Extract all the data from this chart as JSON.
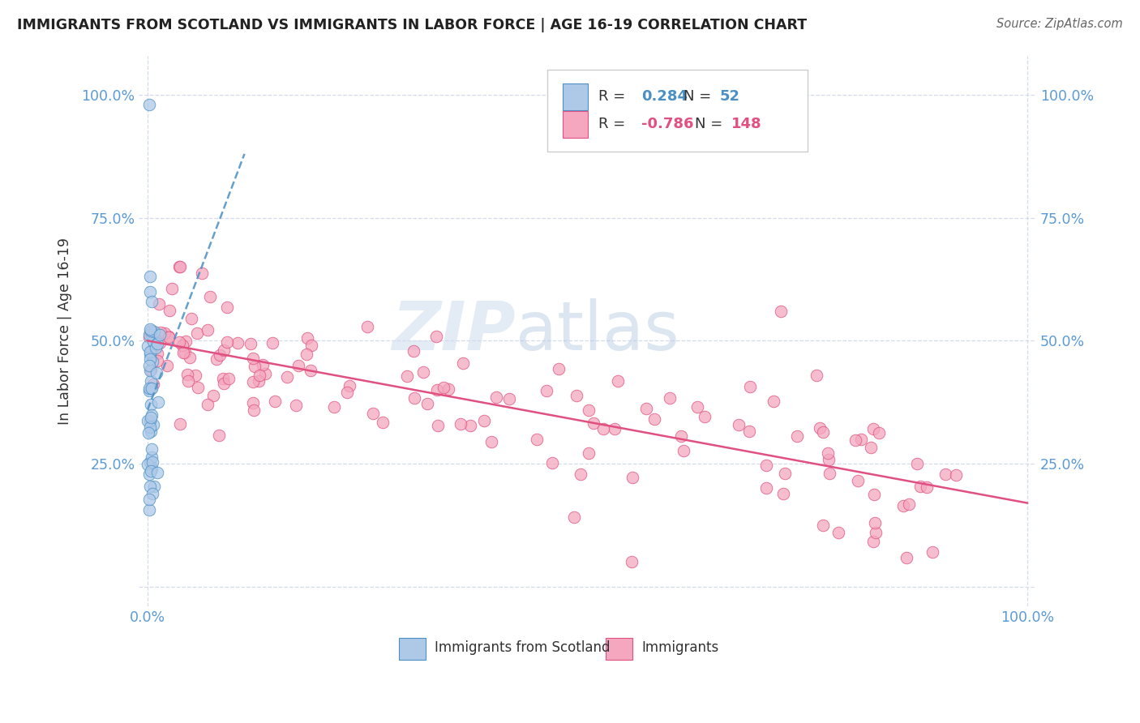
{
  "title": "IMMIGRANTS FROM SCOTLAND VS IMMIGRANTS IN LABOR FORCE | AGE 16-19 CORRELATION CHART",
  "source": "Source: ZipAtlas.com",
  "ylabel": "In Labor Force | Age 16-19",
  "blue_R": 0.284,
  "blue_N": 52,
  "pink_R": -0.786,
  "pink_N": 148,
  "blue_color": "#aec9e8",
  "blue_edge_color": "#4a90c4",
  "blue_line_color": "#4a90c4",
  "pink_color": "#f4a7bf",
  "pink_edge_color": "#e05080",
  "pink_line_color": "#e05080",
  "legend_blue_label": "Immigrants from Scotland",
  "legend_pink_label": "Immigrants",
  "watermark_zip": "ZIP",
  "watermark_atlas": "atlas",
  "background_color": "#ffffff",
  "grid_color": "#d0d8e8",
  "title_color": "#222222",
  "source_color": "#666666",
  "ylabel_color": "#333333",
  "tick_color": "#5b9bd5",
  "xlim": [
    -0.01,
    1.01
  ],
  "ylim": [
    -0.04,
    1.08
  ],
  "ytick_positions": [
    0.0,
    0.25,
    0.5,
    0.75,
    1.0
  ],
  "ytick_labels_left": [
    "",
    "25.0%",
    "50.0%",
    "75.0%",
    "100.0%"
  ],
  "ytick_labels_right": [
    "",
    "25.0%",
    "50.0%",
    "75.0%",
    "100.0%"
  ],
  "xtick_positions": [
    0.0,
    1.0
  ],
  "xtick_labels": [
    "0.0%",
    "100.0%"
  ],
  "blue_trend_x0": 0.0,
  "blue_trend_x1": 0.11,
  "blue_trend_y0": 0.36,
  "blue_trend_y1": 0.88,
  "pink_trend_x0": 0.0,
  "pink_trend_x1": 1.0,
  "pink_trend_y0": 0.5,
  "pink_trend_y1": 0.17
}
